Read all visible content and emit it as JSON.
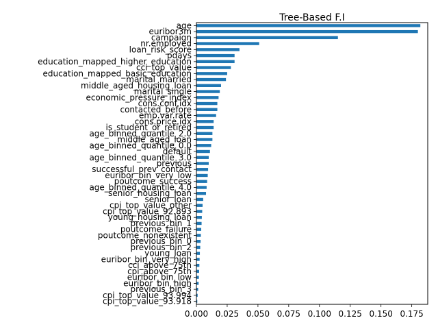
{
  "chart_data": {
    "type": "bar",
    "orientation": "horizontal",
    "title": "Tree-Based F.I",
    "xlabel": "",
    "ylabel": "",
    "xlim": [
      0,
      0.188
    ],
    "x_ticks": [
      "0.000",
      "0.025",
      "0.050",
      "0.075",
      "0.100",
      "0.125",
      "0.150",
      "0.175"
    ],
    "x_tick_values": [
      0,
      0.025,
      0.05,
      0.075,
      0.1,
      0.125,
      0.15,
      0.175
    ],
    "grid": false,
    "bar_color": "#1f77b4",
    "categories": [
      "age",
      "euribor3m",
      "campaign",
      "nr.employed",
      "loan_risk_score",
      "pdays",
      "education_mapped_higher_education",
      "cci_top_value",
      "education_mapped_basic_education",
      "marital_married",
      "middle_aged_housing_loan",
      "marital_single",
      "economic_pressure_index",
      "cons.conf.idx",
      "contacted_before",
      "emp.var.rate",
      "cons.price.idx",
      "is_student_or_retired",
      "age_binned_quantile_2.0",
      "middle_aged_loan",
      "age_binned_quantile_0.0",
      "default",
      "age_binned_quantile_3.0",
      "previous",
      "successful_prev_contact",
      "euribor_bin_very_low",
      "poutcome_success",
      "age_binned_quantile_4.0",
      "senior_housing_loan",
      "senior_loan",
      "cpi_top_value_other",
      "cpi_top_value_92.893",
      "young_housing_loan",
      "previous_bin_1",
      "poutcome_failure",
      "poutcome_nonexistent",
      "previous_bin_0",
      "previous_bin_2",
      "young_loan",
      "euribor_bin_very_high",
      "cci_above_75th",
      "cpi_above_75th",
      "euribor_bin_low",
      "euribor_bin_high",
      "previous_bin_3",
      "cpi_top_value_93.994",
      "cpi_top_value_93.918"
    ],
    "values": [
      0.182,
      0.18,
      0.115,
      0.051,
      0.035,
      0.031,
      0.031,
      0.028,
      0.025,
      0.024,
      0.02,
      0.019,
      0.018,
      0.017,
      0.017,
      0.016,
      0.014,
      0.014,
      0.013,
      0.013,
      0.012,
      0.011,
      0.01,
      0.01,
      0.0095,
      0.0092,
      0.0087,
      0.0083,
      0.0078,
      0.0055,
      0.005,
      0.0047,
      0.0044,
      0.0042,
      0.0039,
      0.0036,
      0.0034,
      0.0031,
      0.0028,
      0.0026,
      0.0024,
      0.0022,
      0.002,
      0.0018,
      0.0014,
      0.001,
      0.0007
    ]
  }
}
